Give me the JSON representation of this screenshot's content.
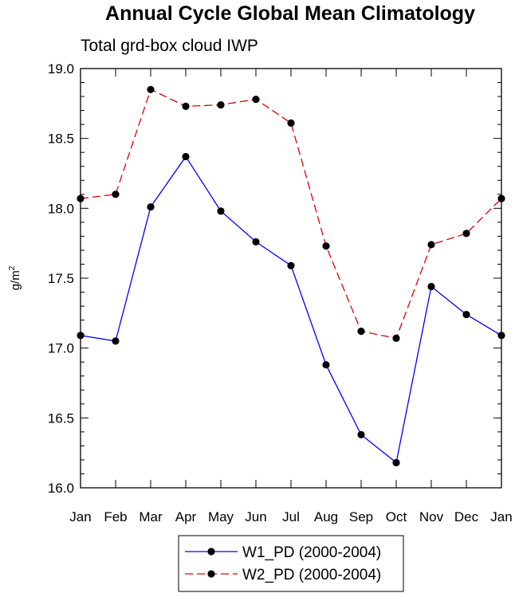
{
  "chart_data": {
    "type": "line",
    "title": "Annual Cycle Global Mean Climatology",
    "subtitle": "Total grd-box cloud IWP",
    "xlabel": "",
    "ylabel": "g/m",
    "ylabel_sup": "2",
    "categories": [
      "Jan",
      "Feb",
      "Mar",
      "Apr",
      "May",
      "Jun",
      "Jul",
      "Aug",
      "Sep",
      "Oct",
      "Nov",
      "Dec",
      "Jan"
    ],
    "ylim": [
      16.0,
      19.0
    ],
    "yticks": [
      "16.0",
      "16.5",
      "17.0",
      "17.5",
      "18.0",
      "18.5",
      "19.0"
    ],
    "series": [
      {
        "name": "W1_PD (2000-2004)",
        "color": "#0000ff",
        "dash": "solid",
        "values": [
          17.09,
          17.05,
          18.01,
          18.37,
          17.98,
          17.76,
          17.59,
          16.88,
          16.38,
          16.18,
          17.44,
          17.24,
          17.09
        ]
      },
      {
        "name": "W2_PD (2000-2004)",
        "color": "#e00000",
        "dash": "dashed",
        "values": [
          18.07,
          18.1,
          18.85,
          18.73,
          18.74,
          18.78,
          18.61,
          17.73,
          17.12,
          17.07,
          17.74,
          17.82,
          18.07
        ]
      }
    ],
    "legend_position": "bottom-center",
    "marker_color": "#000000"
  }
}
